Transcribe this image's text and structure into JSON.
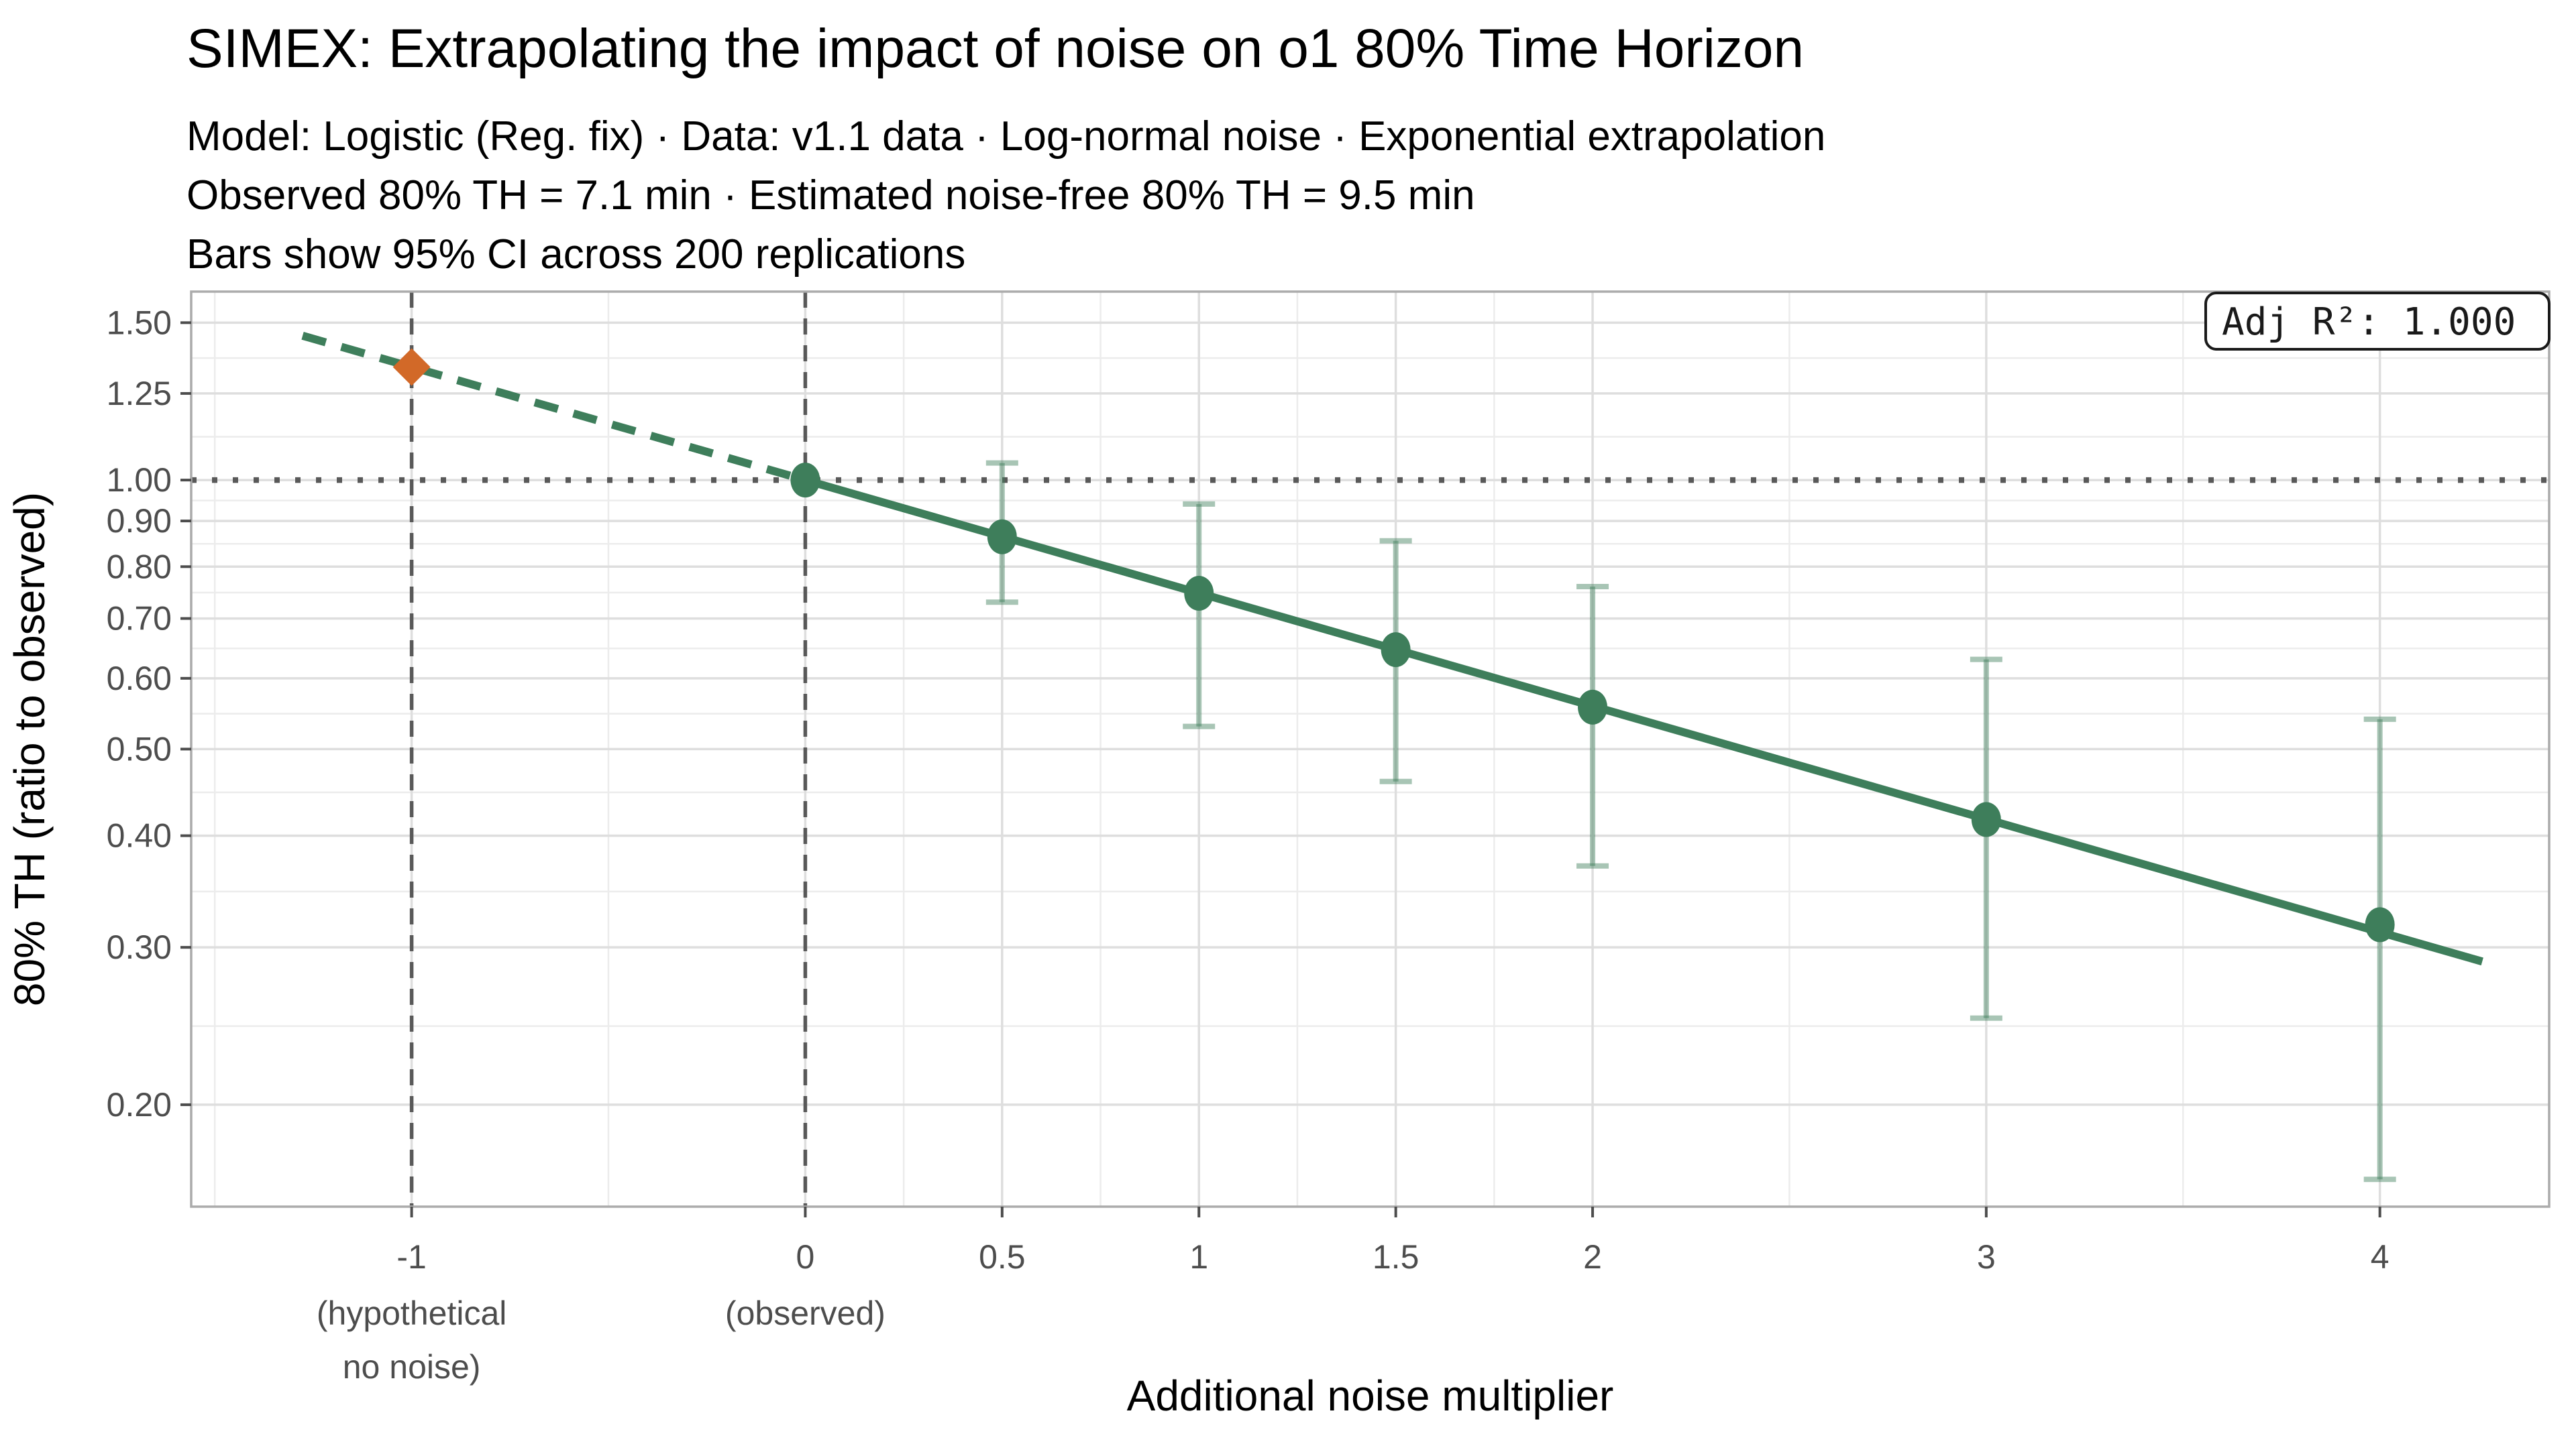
{
  "header": {
    "title": "SIMEX: Extrapolating the impact of noise on o1 80% Time Horizon",
    "subtitle_lines": [
      "Model: Logistic (Reg. fix) · Data: v1.1 data · Log-normal noise · Exponential extrapolation",
      "Observed 80% TH = 7.1 min · Estimated noise-free 80% TH = 9.5 min",
      "Bars show 95% CI across 200 replications"
    ]
  },
  "annotation": {
    "adj_r2_label": "Adj R²: 1.000"
  },
  "chart_data": {
    "type": "scatter",
    "title": "SIMEX: Extrapolating the impact of noise on o1 80% Time Horizon",
    "xlabel": "Additional noise multiplier",
    "ylabel": "80% TH (ratio to observed)",
    "x_scale": "linear",
    "y_scale": "log10",
    "xlim": [
      -1.56,
      4.43
    ],
    "ylim": [
      0.1538,
      1.625
    ],
    "grid": true,
    "legend_position": "none",
    "x_ticks": [
      {
        "value": -1,
        "label": "-1",
        "sublabel": [
          "(hypothetical",
          "no noise)"
        ]
      },
      {
        "value": 0,
        "label": "0",
        "sublabel": [
          "(observed)"
        ]
      },
      {
        "value": 0.5,
        "label": "0.5",
        "sublabel": []
      },
      {
        "value": 1,
        "label": "1",
        "sublabel": []
      },
      {
        "value": 1.5,
        "label": "1.5",
        "sublabel": []
      },
      {
        "value": 2,
        "label": "2",
        "sublabel": []
      },
      {
        "value": 3,
        "label": "3",
        "sublabel": []
      },
      {
        "value": 4,
        "label": "4",
        "sublabel": []
      }
    ],
    "x_minor_gridlines": [
      -1.5,
      -0.5,
      0.25,
      0.75,
      1.25,
      1.75,
      2.5,
      3.5
    ],
    "y_ticks": [
      {
        "value": 1.5,
        "label": "1.50"
      },
      {
        "value": 1.25,
        "label": "1.25"
      },
      {
        "value": 1.0,
        "label": "1.00"
      },
      {
        "value": 0.9,
        "label": "0.90"
      },
      {
        "value": 0.8,
        "label": "0.80"
      },
      {
        "value": 0.7,
        "label": "0.70"
      },
      {
        "value": 0.6,
        "label": "0.60"
      },
      {
        "value": 0.5,
        "label": "0.50"
      },
      {
        "value": 0.4,
        "label": "0.40"
      },
      {
        "value": 0.3,
        "label": "0.30"
      },
      {
        "value": 0.2,
        "label": "0.20"
      }
    ],
    "y_minor_gridlines": [
      1.3693,
      1.118,
      0.9487,
      0.8485,
      0.7483,
      0.6481,
      0.5477,
      0.4472,
      0.3464,
      0.2449
    ],
    "reference_lines": {
      "horizontal_dotted_y": 1.0,
      "vertical_dashed_x": [
        -1,
        0
      ]
    },
    "simex_points": [
      {
        "lambda": 0,
        "ratio": 1.0,
        "ci_low": null,
        "ci_high": null
      },
      {
        "lambda": 0.5,
        "ratio": 0.864,
        "ci_low": 0.73,
        "ci_high": 1.045
      },
      {
        "lambda": 1,
        "ratio": 0.747,
        "ci_low": 0.53,
        "ci_high": 0.94
      },
      {
        "lambda": 1.5,
        "ratio": 0.646,
        "ci_low": 0.46,
        "ci_high": 0.855
      },
      {
        "lambda": 2,
        "ratio": 0.557,
        "ci_low": 0.37,
        "ci_high": 0.76
      },
      {
        "lambda": 3,
        "ratio": 0.417,
        "ci_low": 0.25,
        "ci_high": 0.63
      },
      {
        "lambda": 4,
        "ratio": 0.318,
        "ci_low": 0.165,
        "ci_high": 0.54
      }
    ],
    "extrapolated_point": {
      "lambda": -1,
      "ratio": 1.338,
      "marker": "diamond"
    },
    "fit_line": {
      "model": "exponential",
      "ratio_at_lambda0": 1.0,
      "decay_rate_per_lambda": 0.2912,
      "dashed_segment_lambda": [
        -1.277,
        0
      ],
      "solid_segment_lambda": [
        0,
        4.26
      ]
    },
    "adj_r2_text": "Adj R²: 1.000"
  },
  "colors": {
    "series_green": "#3E7E5B",
    "error_bar_green": "#3E7E5B",
    "error_bar_opacity": 0.45,
    "extrapolated_orange": "#D26928",
    "reference_gray": "#595959",
    "grid_major": "#DEDEDE",
    "grid_minor": "#ECECEC",
    "panel_border": "#ABABAB",
    "tick_mark": "#4D4D4D",
    "tick_label": "#4D4D4D",
    "text_black": "#000000",
    "annotation_border": "#1A1A1A",
    "background": "#FFFFFF"
  }
}
